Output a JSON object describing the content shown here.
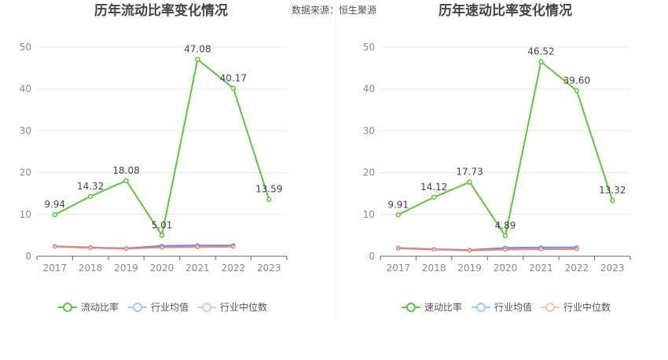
{
  "source": "数据来源：恒生聚源",
  "colors": {
    "main": "#5cc738",
    "avg": "#5b8ff9",
    "median": "#f4836d",
    "avg_legend": "#a8c4f4",
    "median_legend": "#f7c3b0"
  },
  "chart_data": [
    {
      "type": "line",
      "title": "历年流动比率变化情况",
      "categories": [
        "2017",
        "2018",
        "2019",
        "2020",
        "2021",
        "2022",
        "2023"
      ],
      "ylim": [
        0,
        50
      ],
      "yticks": [
        "0",
        "10",
        "20",
        "30",
        "40",
        "50"
      ],
      "grid": true,
      "legend_position": "bottom",
      "series": [
        {
          "name": "流动比率",
          "values": [
            9.94,
            14.32,
            18.08,
            5.01,
            47.08,
            40.17,
            13.59
          ],
          "labels": [
            "9.94",
            "14.32",
            "18.08",
            "5.01",
            "47.08",
            "40.17",
            "13.59"
          ]
        },
        {
          "name": "行业均值",
          "values": [
            2.4,
            2.1,
            1.9,
            2.5,
            2.6,
            2.6,
            null
          ]
        },
        {
          "name": "行业中位数",
          "values": [
            2.3,
            2.0,
            1.8,
            2.1,
            2.2,
            2.3,
            null
          ]
        }
      ]
    },
    {
      "type": "line",
      "title": "历年速动比率变化情况",
      "categories": [
        "2017",
        "2018",
        "2019",
        "2020",
        "2021",
        "2022",
        "2023"
      ],
      "ylim": [
        0,
        50
      ],
      "yticks": [
        "0",
        "10",
        "20",
        "30",
        "40",
        "50"
      ],
      "grid": true,
      "legend_position": "bottom",
      "series": [
        {
          "name": "速动比率",
          "values": [
            9.91,
            14.12,
            17.73,
            4.89,
            46.52,
            39.6,
            13.32
          ],
          "labels": [
            "9.91",
            "14.12",
            "17.73",
            "4.89",
            "46.52",
            "39.60",
            "13.32"
          ]
        },
        {
          "name": "行业均值",
          "values": [
            2.0,
            1.7,
            1.5,
            2.0,
            2.1,
            2.1,
            null
          ]
        },
        {
          "name": "行业中位数",
          "values": [
            1.9,
            1.6,
            1.4,
            1.6,
            1.7,
            1.7,
            null
          ]
        }
      ]
    }
  ]
}
